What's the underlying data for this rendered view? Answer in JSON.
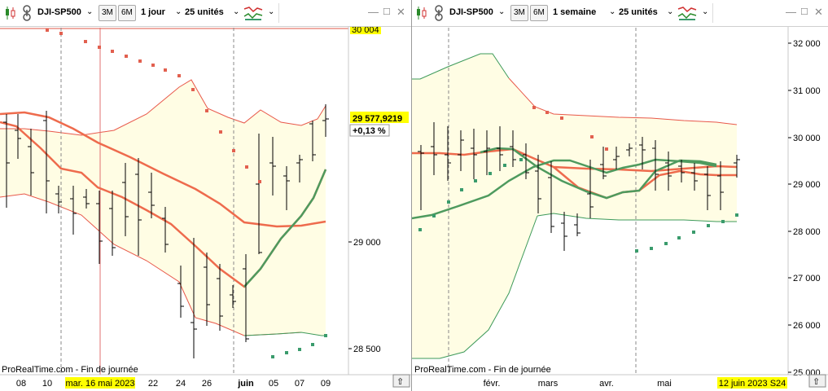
{
  "colors": {
    "band_fill": "#fffde4",
    "bollinger": "#e8584a",
    "bollinger_lower_green": "#3d9a5a",
    "sma_red": "#ee6b4d",
    "sma_green": "#4e9a5e",
    "sar_red": "#e2604f",
    "sar_green": "#3a9b6c",
    "price_label_bg": "#ffff00",
    "date_label_bg": "#ffff00",
    "change_green": "#1a9a32"
  },
  "left": {
    "toolbar": {
      "symbol": "DJI-SP500",
      "btn_3m": "3M",
      "btn_6m": "6M",
      "period": "1 jour",
      "units": "25 unités"
    },
    "price_labels": {
      "level": "30 004",
      "last": "29 577,9219",
      "change": "+0,13 %"
    },
    "y_ticks": [
      "29 000",
      "28 500"
    ],
    "x_ticks": [
      "08",
      "10",
      "22",
      "24",
      "26",
      "juin",
      "05",
      "07",
      "09"
    ],
    "cursor_date": "mar. 16 mai 2023",
    "footer": "ProRealTime.com - Fin de journée"
  },
  "right": {
    "toolbar": {
      "symbol": "DJI-SP500",
      "btn_3m": "3M",
      "btn_6m": "6M",
      "period": "1 semaine",
      "units": "25 unités"
    },
    "y_ticks": [
      "32 000",
      "31 000",
      "30 000",
      "29 000",
      "28 000",
      "27 000",
      "26 000",
      "25 000"
    ],
    "x_ticks": [
      "févr.",
      "mars",
      "avr.",
      "mai"
    ],
    "cursor_date": "12 juin 2023 S24",
    "footer": "ProRealTime.com - Fin de journée"
  }
}
